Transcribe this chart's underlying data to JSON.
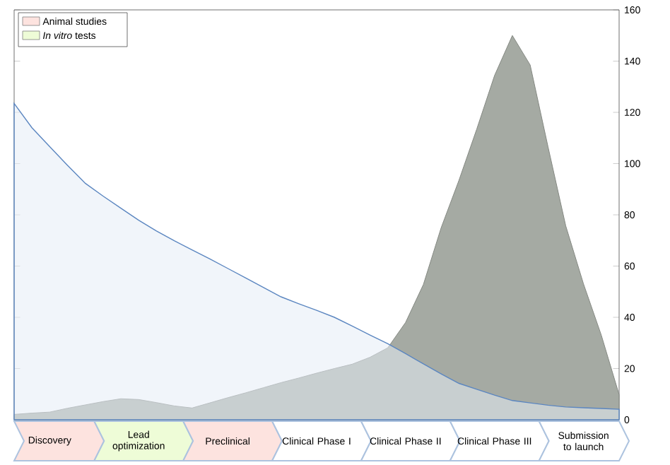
{
  "chart_data": {
    "type": "area",
    "categories": [
      null,
      null,
      "Discovery",
      null,
      null,
      null,
      null,
      "Lead optimization",
      null,
      null,
      null,
      null,
      "Preclinical",
      null,
      null,
      null,
      null,
      "Clinical Phase I",
      null,
      null,
      null,
      null,
      "Clinical Phase II",
      null,
      null,
      null,
      null,
      "Clinical Phase III",
      null,
      null,
      null,
      null,
      "Submission to launch",
      null,
      null
    ],
    "series": [
      {
        "color": "#a5aaa3",
        "values": [
          2.1,
          2.6,
          3.0,
          4.5,
          5.8,
          7.1,
          8.2,
          7.9,
          6.7,
          5.4,
          4.6,
          6.6,
          8.6,
          10.5,
          12.5,
          14.5,
          16.3,
          18.2,
          20,
          21.7,
          24.4,
          28.1,
          38,
          52.8,
          75,
          93.5,
          113.5,
          134.4,
          150,
          138.5,
          106.7,
          75.7,
          53,
          33,
          9.8
        ]
      },
      {
        "color": "#5b86c0",
        "values": [
          123.5,
          114,
          106.6,
          99.3,
          92.3,
          87.3,
          82.6,
          77.9,
          73.7,
          69.9,
          66.3,
          62.8,
          59.1,
          55.4,
          51.7,
          48,
          45.3,
          42.7,
          40,
          36.6,
          33.1,
          29.7,
          25.8,
          21.8,
          17.9,
          14.2,
          11.9,
          9.6,
          7.5,
          6.6,
          5.7,
          5.0,
          4.7,
          4.4,
          4.1
        ]
      }
    ],
    "ylim": [
      0,
      160
    ],
    "yticks": [
      0,
      20,
      40,
      60,
      80,
      100,
      120,
      140,
      160
    ],
    "annotations": [
      "Animal studies",
      "*In vitro* tests"
    ]
  }
}
